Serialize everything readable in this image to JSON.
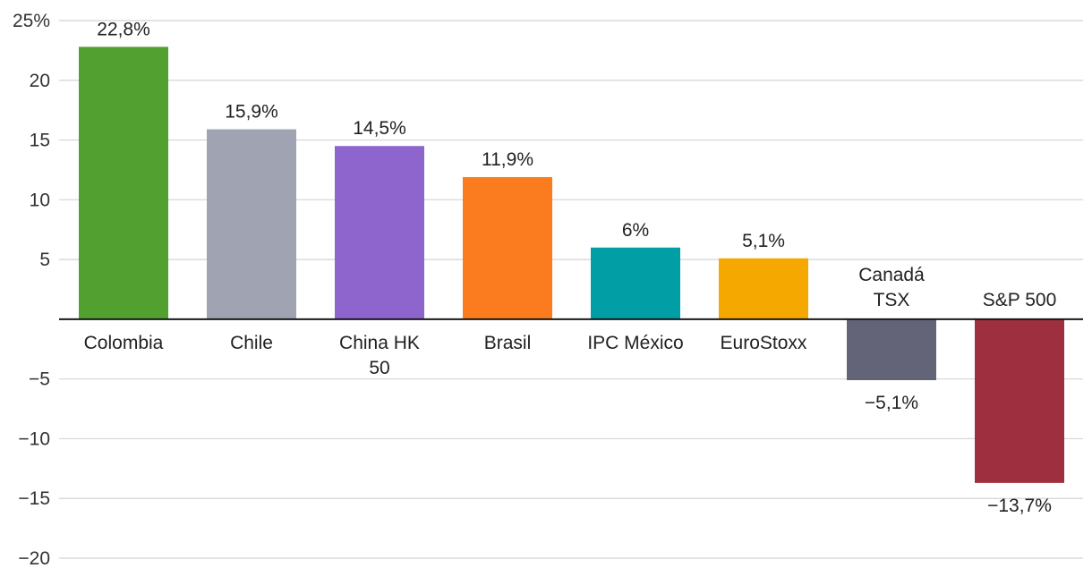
{
  "chart_data": {
    "type": "bar",
    "title": "",
    "xlabel": "",
    "ylabel": "",
    "ylim": [
      -20,
      25
    ],
    "yticks": [
      25,
      20,
      15,
      10,
      5,
      -5,
      -10,
      -15,
      -20
    ],
    "ytick_labels": [
      "25%",
      "20",
      "15",
      "10",
      "5",
      "−5",
      "−10",
      "−15",
      "−20"
    ],
    "grid": true,
    "categories": [
      [
        "Colombia"
      ],
      [
        "Chile"
      ],
      [
        "China HK",
        "50"
      ],
      [
        "Brasil"
      ],
      [
        "IPC México"
      ],
      [
        "EuroStoxx"
      ],
      [
        "Canadá",
        "TSX"
      ],
      [
        "S&P 500"
      ]
    ],
    "values": [
      22.8,
      15.9,
      14.5,
      11.9,
      6,
      5.1,
      -5.1,
      -13.7
    ],
    "value_labels": [
      "22,8%",
      "15,9%",
      "14,5%",
      "11,9%",
      "6%",
      "5,1%",
      "−5,1%",
      "−13,7%"
    ],
    "colors": [
      "#52a02f",
      "#a0a3b2",
      "#8e65cc",
      "#fb7c1f",
      "#029ea6",
      "#f5a800",
      "#636478",
      "#9e2f3f"
    ]
  }
}
